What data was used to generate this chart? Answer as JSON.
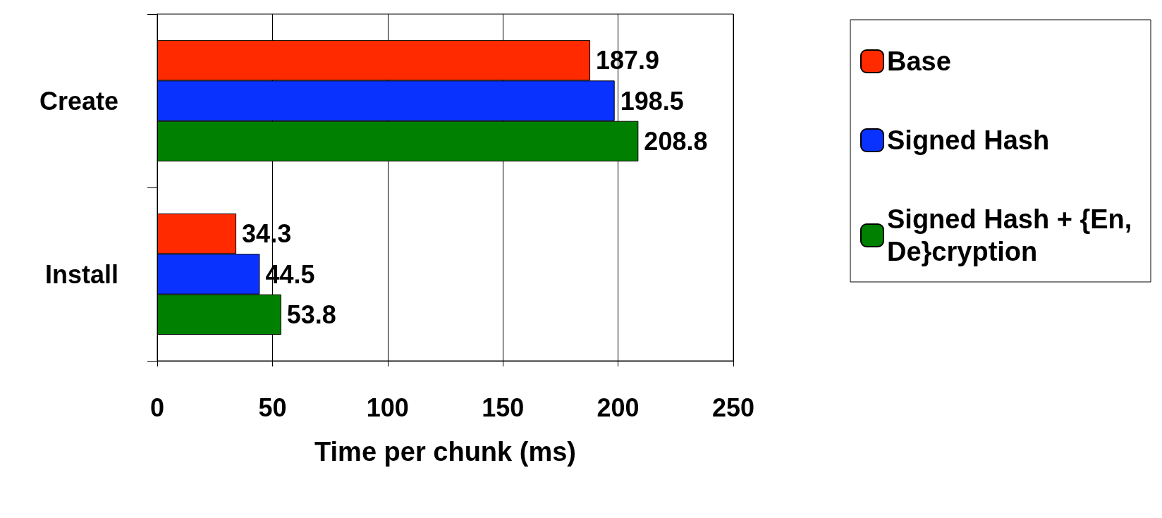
{
  "chart_data": {
    "type": "bar",
    "orientation": "horizontal",
    "categories": [
      "Create",
      "Install"
    ],
    "series": [
      {
        "name": "Base",
        "color": "#ff2a00",
        "values": [
          187.9,
          34.3
        ]
      },
      {
        "name": "Signed Hash",
        "color": "#0a32ff",
        "values": [
          198.5,
          44.5
        ]
      },
      {
        "name": "Signed Hash + {En,De}cryption",
        "color": "#008000",
        "values": [
          208.8,
          53.8
        ]
      }
    ],
    "xlabel": "Time per chunk (ms)",
    "xlim": [
      0,
      250
    ],
    "xticks": [
      0,
      50,
      100,
      150,
      200,
      250
    ],
    "grid": "x",
    "legend": "right",
    "data_labels": true
  }
}
